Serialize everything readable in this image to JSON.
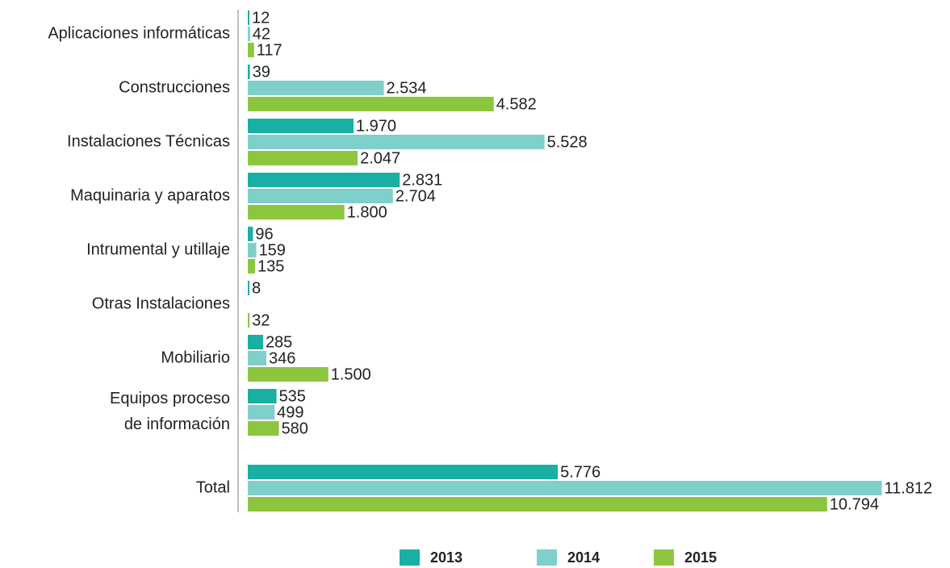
{
  "chart_data": {
    "type": "bar",
    "orientation": "horizontal",
    "categories": [
      "Aplicaciones informáticas",
      "Construcciones",
      "Instalaciones Técnicas",
      "Maquinaria y aparatos",
      "Intrumental y utillaje",
      "Otras Instalaciones",
      "Mobiliario",
      "Equipos proceso\nde información",
      "Total"
    ],
    "series": [
      {
        "name": "2013",
        "color": "#1aafa3",
        "values": [
          12,
          39,
          1970,
          2831,
          96,
          8,
          285,
          535,
          5776
        ],
        "value_labels": [
          "12",
          "39",
          "1.970",
          "2.831",
          "96",
          "8",
          "285",
          "535",
          "5.776"
        ]
      },
      {
        "name": "2014",
        "color": "#7fcfcb",
        "values": [
          42,
          2534,
          5528,
          2704,
          159,
          null,
          346,
          499,
          11812
        ],
        "value_labels": [
          "42",
          "2.534",
          "5.528",
          "2.704",
          "159",
          null,
          "346",
          "499",
          "11.812"
        ]
      },
      {
        "name": "2015",
        "color": "#8cc63f",
        "values": [
          117,
          4582,
          2047,
          1800,
          135,
          32,
          1500,
          580,
          10794
        ],
        "value_labels": [
          "117",
          "4.582",
          "2.047",
          "1.800",
          "135",
          "32",
          "1.500",
          "580",
          "10.794"
        ]
      }
    ],
    "xlim": [
      0,
      12000
    ],
    "legend": "bottom"
  }
}
